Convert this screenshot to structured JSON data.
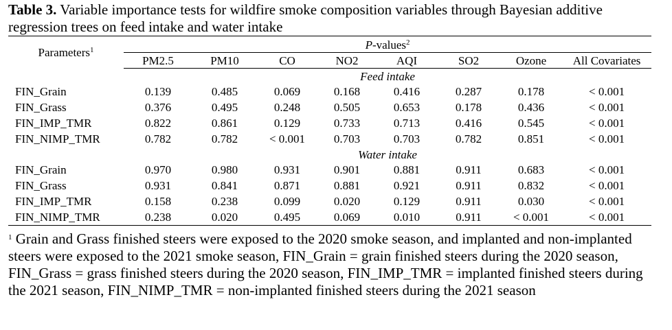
{
  "caption": {
    "label": "Table 3.",
    "text": " Variable importance tests for wildfire smoke composition variables through Bayesian additive regression trees on feed intake and water intake"
  },
  "table": {
    "params_header": "Parameters",
    "params_sup": "1",
    "pvalues_header": "P",
    "pvalues_header_rest": "-values",
    "pvalues_sup": "2",
    "columns": [
      "PM2.5",
      "PM10",
      "CO",
      "NO2",
      "AQI",
      "SO2",
      "Ozone",
      "All Covariates"
    ],
    "sections": [
      {
        "title": "Feed intake",
        "rows": [
          {
            "label": "FIN_Grain",
            "values": [
              "0.139",
              "0.485",
              "0.069",
              "0.168",
              "0.416",
              "0.287",
              "0.178",
              "< 0.001"
            ]
          },
          {
            "label": "FIN_Grass",
            "values": [
              "0.376",
              "0.495",
              "0.248",
              "0.505",
              "0.653",
              "0.178",
              "0.436",
              "< 0.001"
            ]
          },
          {
            "label": "FIN_IMP_TMR",
            "values": [
              "0.822",
              "0.861",
              "0.129",
              "0.733",
              "0.713",
              "0.416",
              "0.545",
              "< 0.001"
            ]
          },
          {
            "label": "FIN_NIMP_TMR",
            "values": [
              "0.782",
              "0.782",
              "< 0.001",
              "0.703",
              "0.703",
              "0.782",
              "0.851",
              "< 0.001"
            ]
          }
        ]
      },
      {
        "title": "Water intake",
        "rows": [
          {
            "label": "FIN_Grain",
            "values": [
              "0.970",
              "0.980",
              "0.931",
              "0.901",
              "0.881",
              "0.911",
              "0.683",
              "< 0.001"
            ]
          },
          {
            "label": "FIN_Grass",
            "values": [
              "0.931",
              "0.841",
              "0.871",
              "0.881",
              "0.921",
              "0.911",
              "0.832",
              "< 0.001"
            ]
          },
          {
            "label": "FIN_IMP_TMR",
            "values": [
              "0.158",
              "0.238",
              "0.099",
              "0.020",
              "0.129",
              "0.911",
              "0.030",
              "< 0.001"
            ]
          },
          {
            "label": "FIN_NIMP_TMR",
            "values": [
              "0.238",
              "0.020",
              "0.495",
              "0.069",
              "0.010",
              "0.911",
              "< 0.001",
              "< 0.001"
            ]
          }
        ]
      }
    ]
  },
  "footnote": {
    "sup": "1",
    "text": " Grain and Grass finished steers were exposed to the 2020 smoke season, and implanted and non-implanted steers were exposed to the 2021 smoke season, FIN_Grain = grain finished steers during the 2020 season, FIN_Grass = grass finished steers during the 2020 season, FIN_IMP_TMR = implanted finished steers during the 2021 season, FIN_NIMP_TMR = non-implanted finished steers during the 2021 season"
  }
}
